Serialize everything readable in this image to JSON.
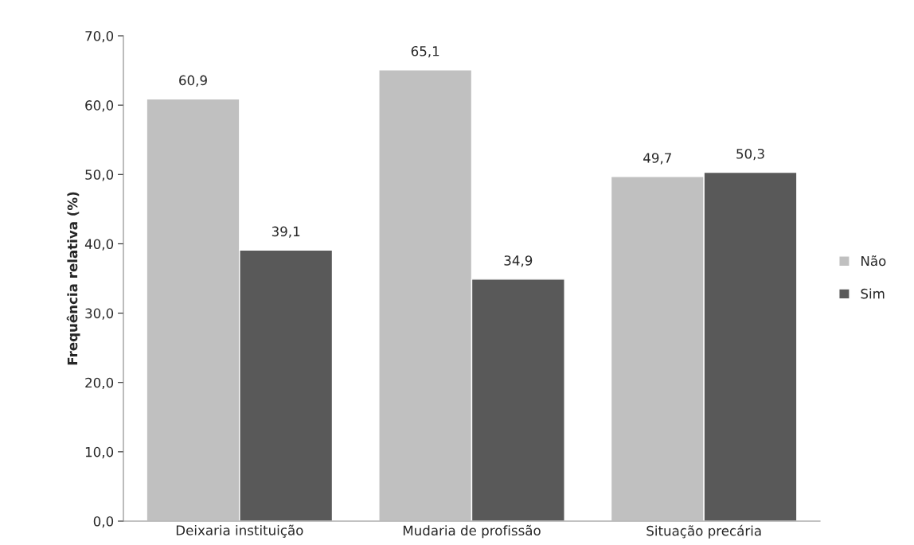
{
  "chart_data": {
    "type": "bar",
    "ylabel": "Frequência relativa (%)",
    "categories": [
      "Deixaria instituição",
      "Mudaria de profissão",
      "Situação precária"
    ],
    "series": [
      {
        "name": "Não",
        "color": "#c0c0c0",
        "values": [
          60.9,
          65.1,
          49.7
        ],
        "value_labels": [
          "60,9",
          "65,1",
          "49,7"
        ]
      },
      {
        "name": "Sim",
        "color": "#595959",
        "values": [
          39.1,
          34.9,
          50.3
        ],
        "value_labels": [
          "39,1",
          "34,9",
          "50,3"
        ]
      }
    ],
    "ylim": [
      0,
      70
    ],
    "yticks": [
      {
        "value": 0,
        "label": "0,0"
      },
      {
        "value": 10,
        "label": "10,0"
      },
      {
        "value": 20,
        "label": "20,0"
      },
      {
        "value": 30,
        "label": "30,0"
      },
      {
        "value": 40,
        "label": "40,0"
      },
      {
        "value": 50,
        "label": "50,0"
      },
      {
        "value": 60,
        "label": "60,0"
      },
      {
        "value": 70,
        "label": "70,0"
      }
    ],
    "grid": false,
    "legend": "right"
  }
}
